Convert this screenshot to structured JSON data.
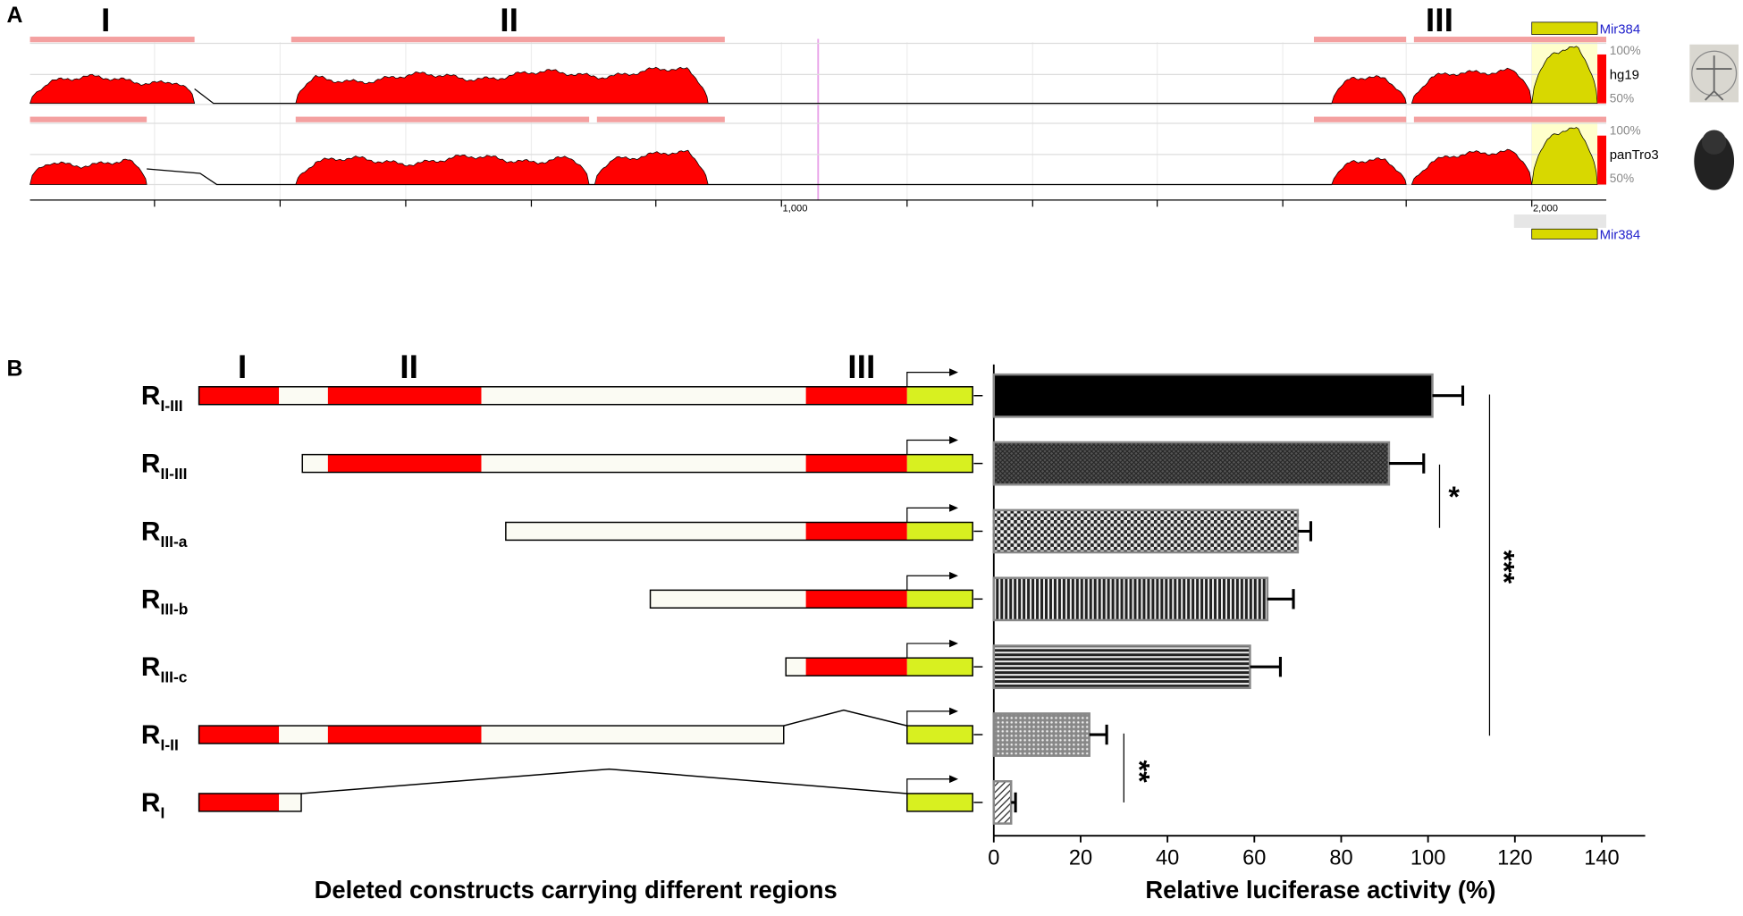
{
  "panel_a": {
    "label": "A",
    "regions": [
      "I",
      "II",
      "III"
    ],
    "mirna_top": "Mir384",
    "mirna_bottom": "Mir384",
    "tracks": [
      {
        "name": "hg19",
        "high": "100%",
        "low": "50%"
      },
      {
        "name": "panTro3",
        "high": "100%",
        "low": "50%"
      }
    ],
    "axis_labels": [
      "1,000",
      "2,000"
    ]
  },
  "panel_b": {
    "label": "B",
    "regions": [
      "I",
      "II",
      "III"
    ],
    "diagram_title": "Deleted constructs carrying different regions"
  },
  "chart_data": {
    "type": "bar",
    "orientation": "horizontal",
    "xlabel": "Relative luciferase activity (%)",
    "categories": [
      {
        "base": "R",
        "sub": "I-III"
      },
      {
        "base": "R",
        "sub": "II-III"
      },
      {
        "base": "R",
        "sub": "III-a"
      },
      {
        "base": "R",
        "sub": "III-b"
      },
      {
        "base": "R",
        "sub": "III-c"
      },
      {
        "base": "R",
        "sub": "I-II"
      },
      {
        "base": "R",
        "sub": "I"
      }
    ],
    "values": [
      101,
      91,
      70,
      63,
      59,
      22,
      4
    ],
    "errors": [
      7,
      8,
      3,
      6,
      7,
      4,
      1
    ],
    "xlim": [
      0,
      150
    ],
    "xticks": [
      0,
      20,
      40,
      60,
      80,
      100,
      120,
      140
    ],
    "annotations": [
      "*",
      "**",
      "***"
    ]
  }
}
